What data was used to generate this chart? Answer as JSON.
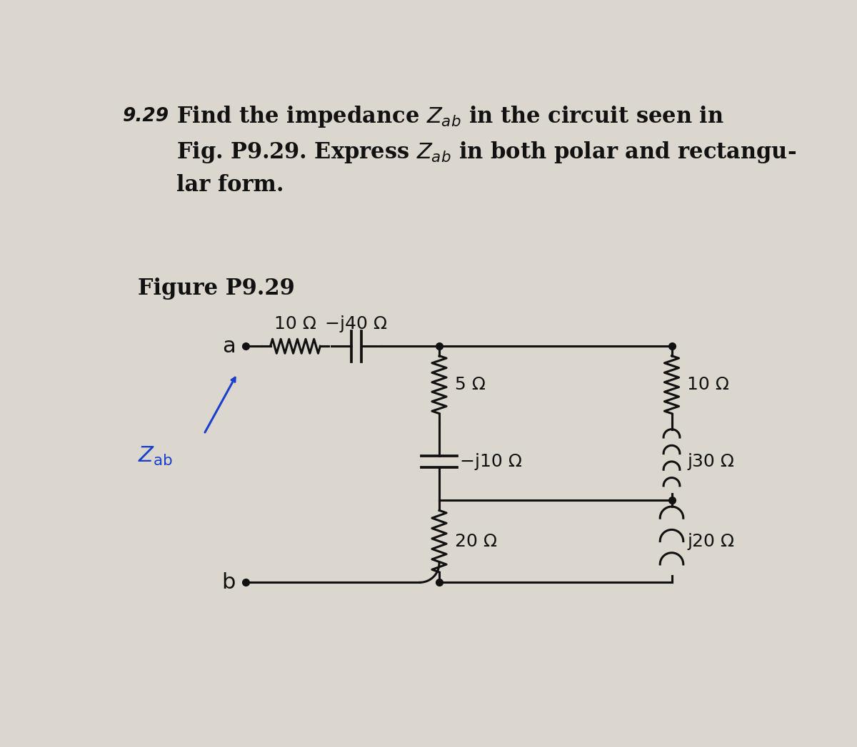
{
  "figure_label": "Figure P9.29",
  "bg_color": "#dbd7cf",
  "component_labels": {
    "R1": "10 Ω",
    "C1": "−j40 Ω",
    "R2": "5 Ω",
    "C2": "−j10 Ω",
    "R3": "20 Ω",
    "R4": "10 Ω",
    "L1": "j30 Ω",
    "L2": "j20 Ω"
  },
  "arrow_color": "#1a3fcc",
  "line_color": "#111111",
  "text_color": "#111111",
  "font_size_title": 22,
  "font_size_fig_label": 22,
  "font_size_component": 18,
  "font_size_node": 22,
  "font_size_problem_num": 19
}
